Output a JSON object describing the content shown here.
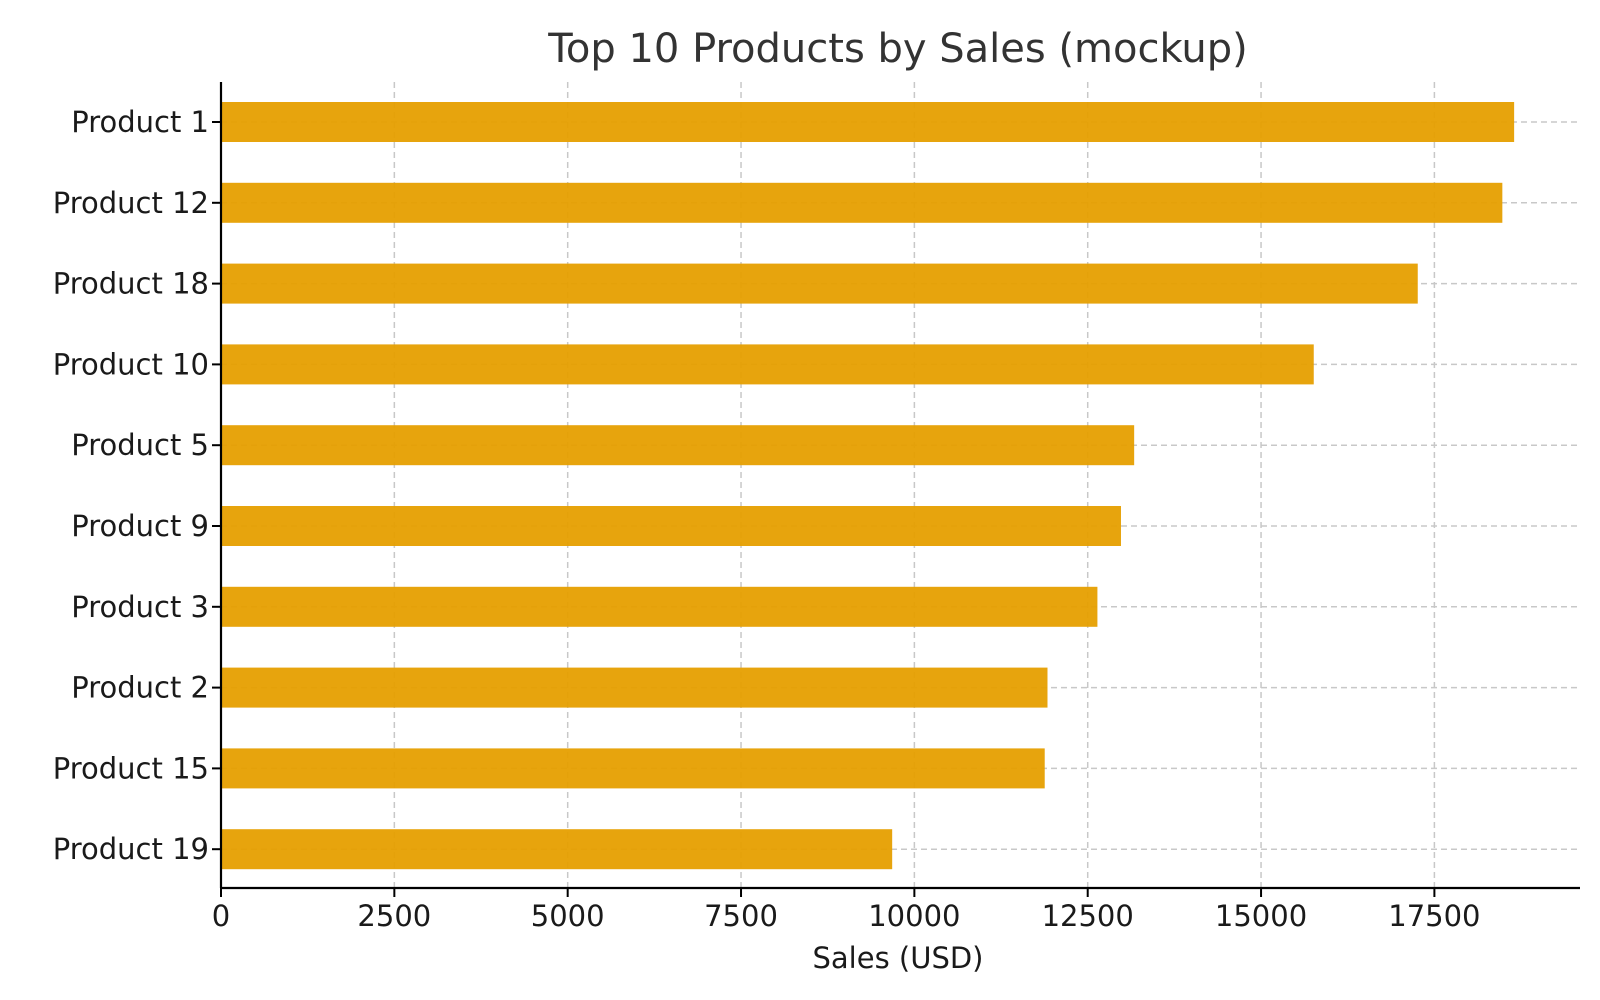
{
  "chart_data": {
    "type": "bar",
    "orientation": "horizontal",
    "title": "Top 10 Products by Sales (mockup)",
    "xlabel": "Sales (USD)",
    "ylabel": "",
    "categories": [
      "Product 1",
      "Product 12",
      "Product 18",
      "Product 10",
      "Product 5",
      "Product 9",
      "Product 3",
      "Product 2",
      "Product 15",
      "Product 19"
    ],
    "values": [
      18650,
      18480,
      17260,
      15760,
      13170,
      12980,
      12640,
      11920,
      11880,
      9680
    ],
    "xlim": [
      0,
      19600
    ],
    "x_ticks": [
      "0",
      "2500",
      "5000",
      "7500",
      "10000",
      "12500",
      "15000",
      "17500"
    ],
    "grid": true,
    "grid_style": "dashed",
    "legend": "none",
    "colors": {
      "bar": "#E69F00",
      "grid": "#c8c8c8",
      "axis": "#000000",
      "title": "#333333",
      "text": "#1a1a1a"
    }
  }
}
